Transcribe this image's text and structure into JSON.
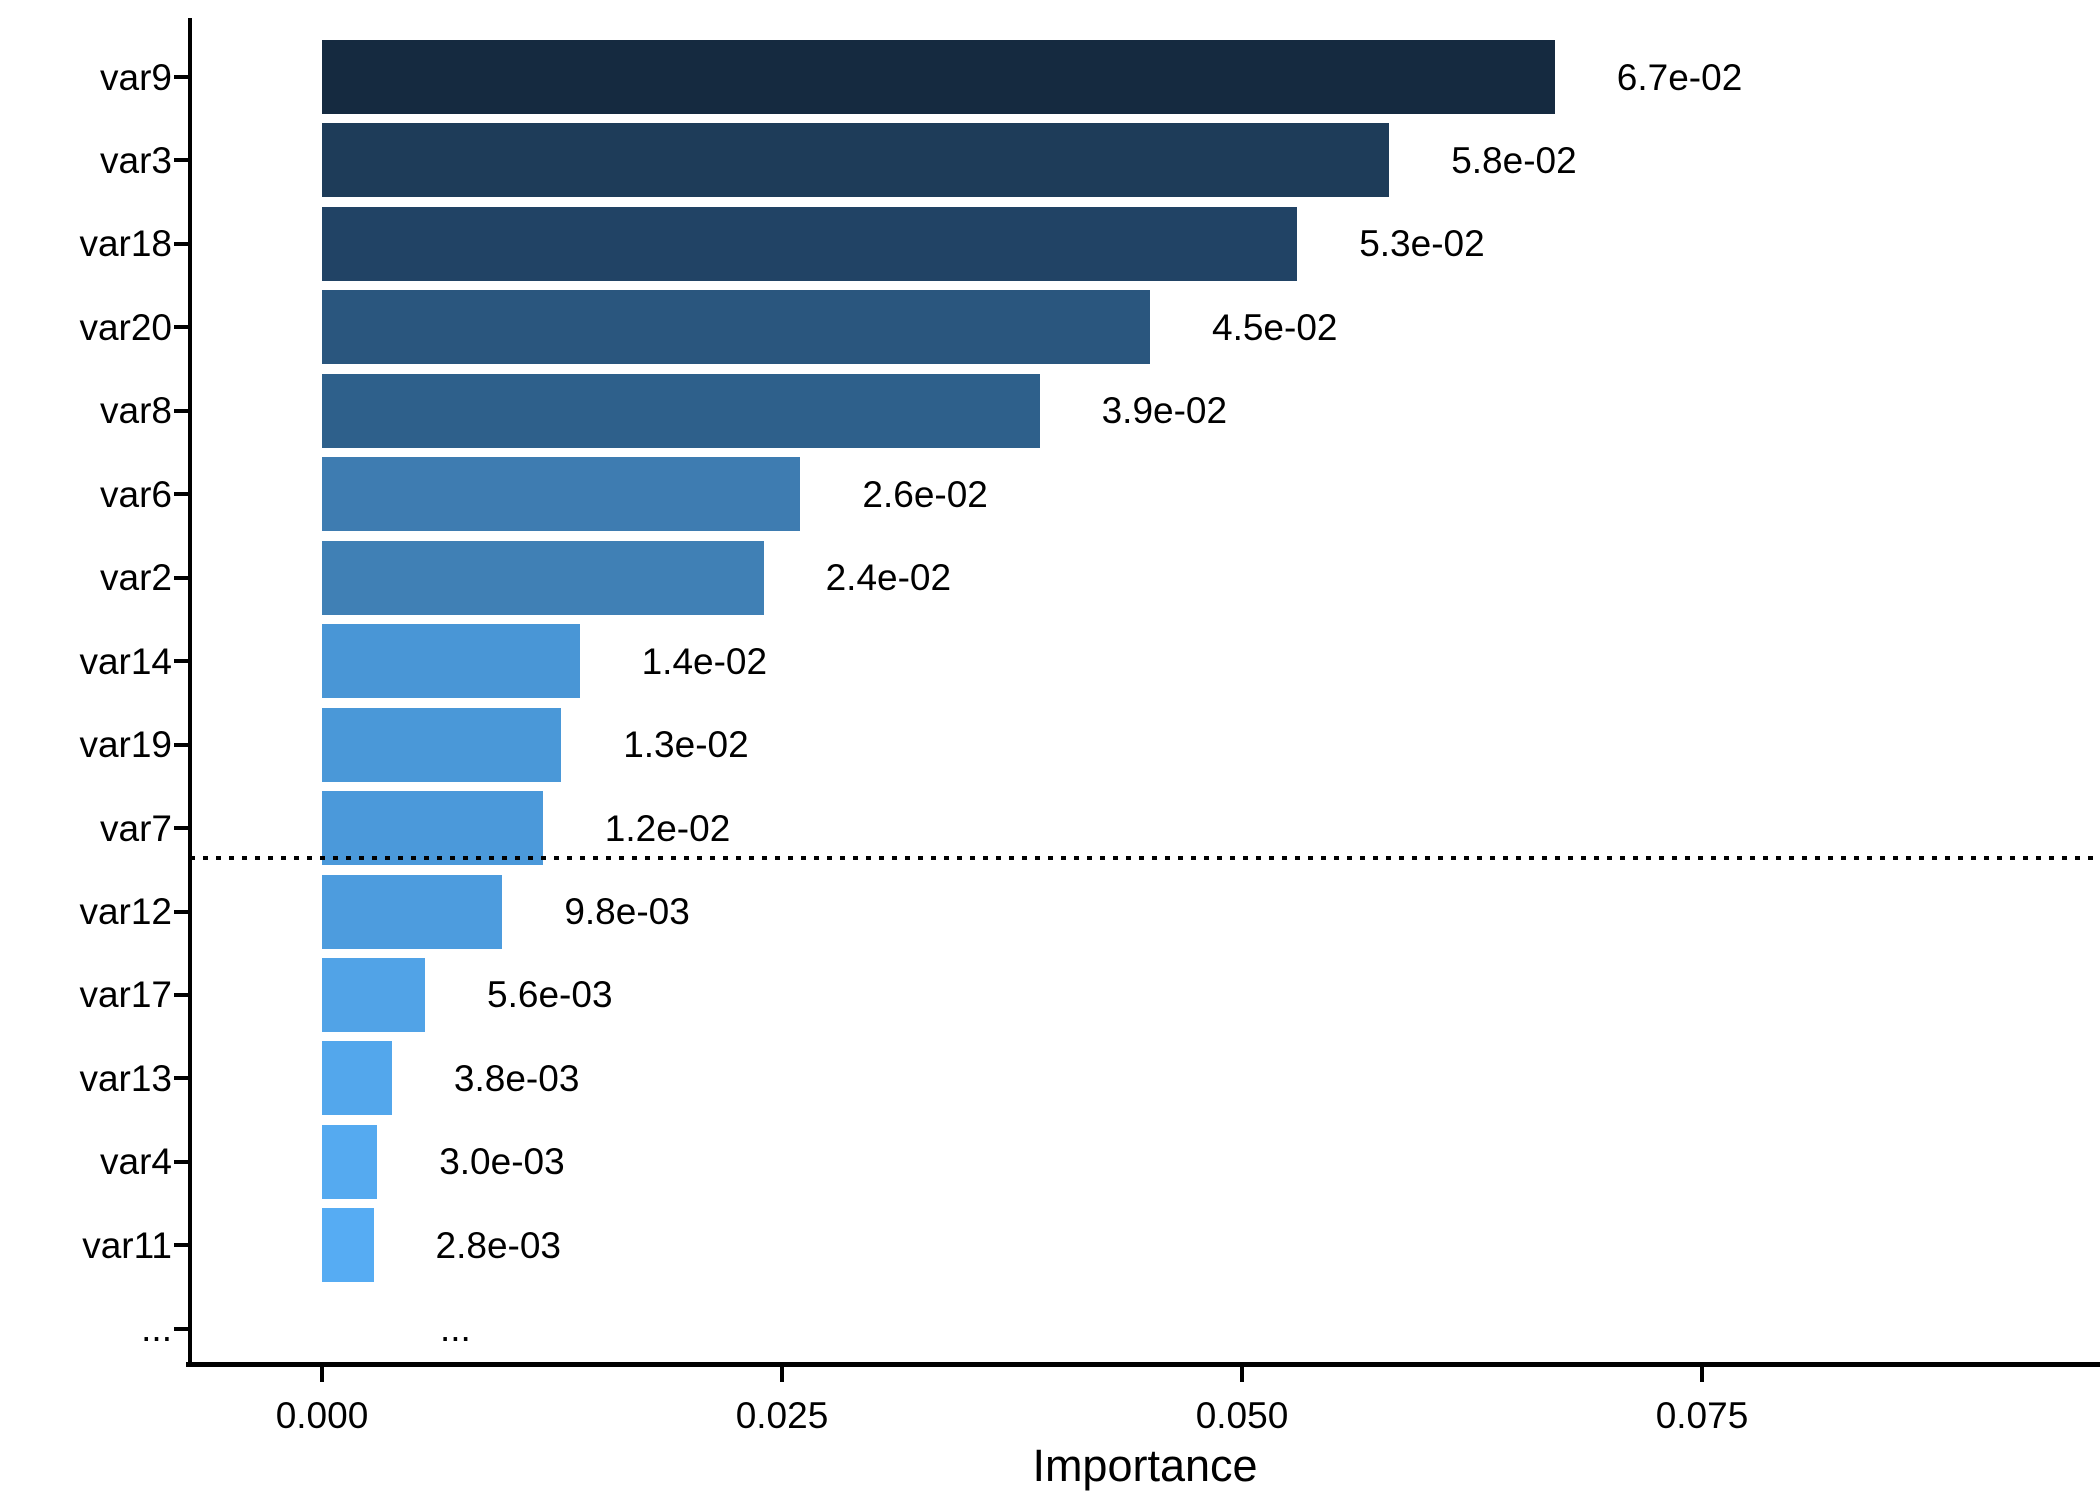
{
  "chart_data": {
    "type": "bar",
    "orientation": "horizontal",
    "title": "",
    "xlabel": "Importance",
    "ylabel": "",
    "categories": [
      "var9",
      "var3",
      "var18",
      "var20",
      "var8",
      "var6",
      "var2",
      "var14",
      "var19",
      "var7",
      "var12",
      "var17",
      "var13",
      "var4",
      "var11",
      "..."
    ],
    "values": [
      0.067,
      0.058,
      0.053,
      0.045,
      0.039,
      0.026,
      0.024,
      0.014,
      0.013,
      0.012,
      0.0098,
      0.0056,
      0.0038,
      0.003,
      0.0028,
      null
    ],
    "value_labels": [
      "6.7e-02",
      "5.8e-02",
      "5.3e-02",
      "4.5e-02",
      "3.9e-02",
      "2.6e-02",
      "2.4e-02",
      "1.4e-02",
      "1.3e-02",
      "1.2e-02",
      "9.8e-03",
      "5.6e-03",
      "3.8e-03",
      "3.0e-03",
      "2.8e-03",
      "..."
    ],
    "bar_colors": [
      "#152a40",
      "#1e3c59",
      "#214365",
      "#2a567e",
      "#2e608b",
      "#3e7cb1",
      "#4080b5",
      "#4996d6",
      "#4a98d8",
      "#4b99da",
      "#4d9cde",
      "#51a3e7",
      "#53a7ec",
      "#55aaf0",
      "#56acf3",
      null
    ],
    "x_ticks": {
      "labels": [
        "0.000",
        "0.025",
        "0.050",
        "0.075"
      ],
      "values": [
        0,
        0.025,
        0.05,
        0.075
      ]
    },
    "xlim": [
      -0.0071,
      0.0967
    ],
    "grid": false,
    "legend": false,
    "threshold_line": {
      "style": "dotted",
      "color": "#000000",
      "after_category": "var7"
    },
    "axis_color": "#000000",
    "text_color": "#000000",
    "background": "#ffffff"
  }
}
